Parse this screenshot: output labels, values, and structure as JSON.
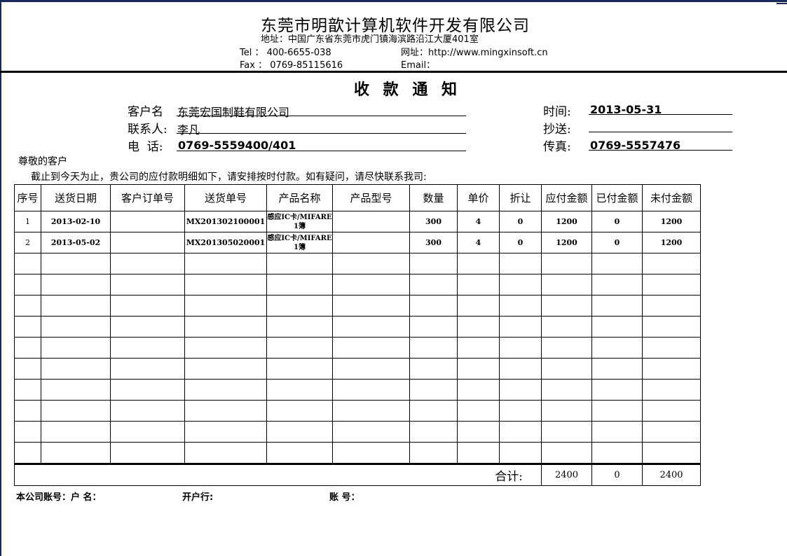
{
  "company": {
    "name": "东莞市明歆计算机软件开发有限公司",
    "address": "地址：中国广东省东莞市虎门镇海滨路沿江大厦401室",
    "tel": "Tel ： 400-6655-038",
    "website": "网址：http://www.mingxinsoft.cn",
    "fax": "Fax ： 0769-85115616",
    "email": "Email："
  },
  "doc_title": "收 款 通 知",
  "info": {
    "customer_label": "客户名",
    "customer": "东莞宏国制鞋有限公司",
    "contact_label": "联系人:",
    "contact": "李凡",
    "phone_label": "电  话:",
    "phone": "0769-5559400/401",
    "date_label": "时间:",
    "date": "2013-05-31",
    "cc_label": "抄送:",
    "cc": "",
    "fax_label": "传真:",
    "fax": "0769-5557476"
  },
  "greeting": "尊敬的客户",
  "message": "截止到今天为止，贵公司的应付款明细如下，请安排按时付款。如有疑问，请尽快联系我司:",
  "table": {
    "headers": [
      "序号",
      "送货日期",
      "客户订单号",
      "送货单号",
      "产品名称",
      "产品型号",
      "数量",
      "单价",
      "折让",
      "应付金额",
      "已付金额",
      "未付金额"
    ],
    "rows": [
      [
        "1",
        "2013-02-10",
        "",
        "MX201302100001",
        "感应IC卡/MIFARE 1簿",
        "",
        "300",
        "4",
        "0",
        "1200",
        "0",
        "1200"
      ],
      [
        "2",
        "2013-05-02",
        "",
        "MX201305020001",
        "感应IC卡/MIFARE 1簿",
        "",
        "300",
        "4",
        "0",
        "1200",
        "0",
        "1200"
      ]
    ],
    "empty_rows": 10,
    "total_label": "合计:",
    "totals": {
      "payable": "2400",
      "paid": "0",
      "unpaid": "2400"
    }
  },
  "footer": {
    "account_label": "本公司账号：户 名：",
    "bank_label": "开户行:",
    "account_no_label": "账 号："
  }
}
